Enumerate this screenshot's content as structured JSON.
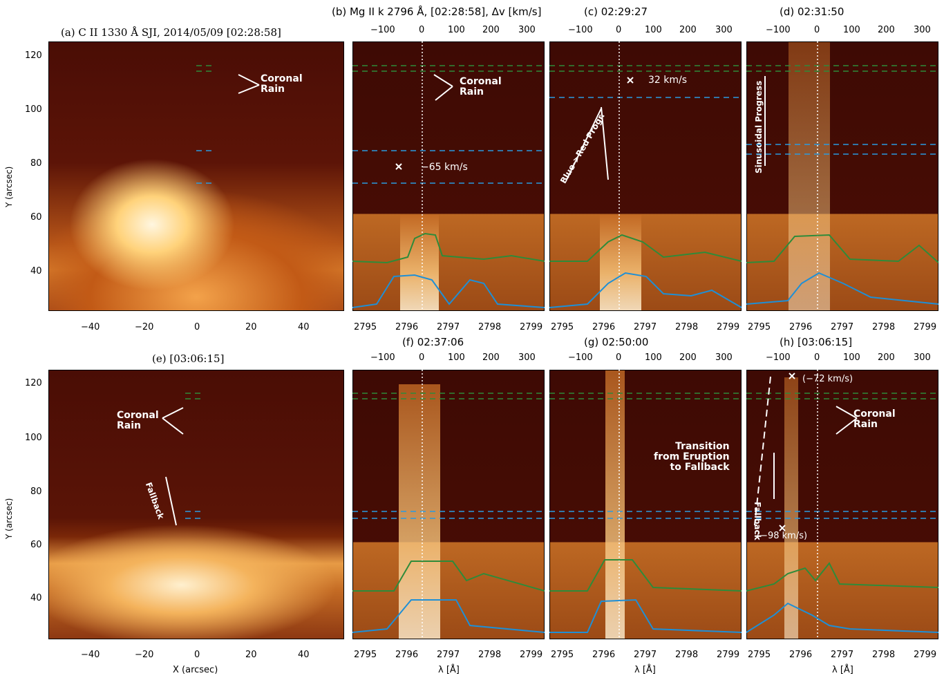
{
  "panels": {
    "a": {
      "title": "(a) C II 1330 Å SJI, 2014/05/09 [02:28:58]",
      "rain": "Coronal\nRain"
    },
    "b": {
      "title": "(b) Mg II k 2796 Å, [02:28:58], Δv [km/s]",
      "rain": "Coronal\nRain",
      "vel": "−65 km/s"
    },
    "c": {
      "title": "(c) 02:29:27",
      "vel": "32 km/s",
      "prog": "Blue->Red Progr."
    },
    "d": {
      "title": "(d) 02:31:50",
      "prog": "Sinusoidal Progress"
    },
    "e": {
      "title": "(e) [03:06:15]",
      "rain": "Coronal\nRain",
      "fall": "Fallback"
    },
    "f": {
      "title": "(f) 02:37:06"
    },
    "g": {
      "title": "(g) 02:50:00",
      "trans": "Transition\nfrom Eruption\nto Fallback"
    },
    "h": {
      "title": "(h) [03:06:15]",
      "v1": "(−72 km/s)",
      "v2": "(−98 km/s)",
      "rain": "Coronal\nRain",
      "fall": "Fallback"
    }
  },
  "axes": {
    "ylabel": "Y (arcsec)",
    "xlabel_sji": "X (arcsec)",
    "xlabel_spec": "λ [Å]",
    "y_ticks": [
      "120",
      "100",
      "80",
      "60",
      "40"
    ],
    "x_ticks_sji": [
      "−40",
      "−20",
      "0",
      "20",
      "40"
    ],
    "x_ticks_lambda": [
      "2795",
      "2796",
      "2797",
      "2798",
      "2799"
    ],
    "v_ticks": [
      "−100",
      "0",
      "100",
      "200",
      "300"
    ]
  },
  "colors": {
    "green": "#2e8b3a",
    "blue": "#1e8fd6",
    "cyan_dash": "#2a9be0"
  }
}
